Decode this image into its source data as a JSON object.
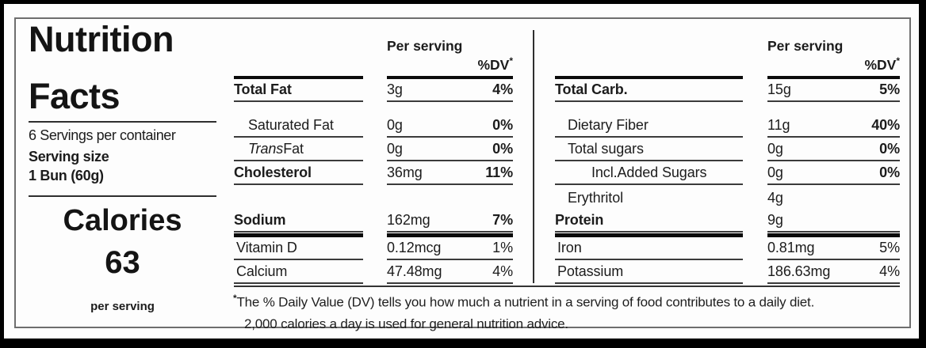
{
  "panel": {
    "title_line1": "Nutrition",
    "title_line2": "Facts",
    "servings_per_container": "6 Servings per container",
    "serving_size_label": "Serving size",
    "serving_size_value": "1 Bun (60g)",
    "calories_label": "Calories",
    "calories_value": "63",
    "calories_suffix": "per serving"
  },
  "columns": {
    "left": {
      "header": {
        "per_serving": "Per serving",
        "dv_label": "%DV",
        "asterisk": "*"
      },
      "rows": [
        {
          "name": "Total Fat",
          "amount": "3g",
          "dv": "4%"
        },
        {
          "name": "Saturated Fat",
          "amount": "0g",
          "dv": "0%"
        },
        {
          "name_italic": "Trans",
          "name_rest": " Fat",
          "amount": "0g",
          "dv": "0%"
        },
        {
          "name": "Cholesterol",
          "amount": "36mg",
          "dv": "11%"
        },
        {
          "name": "Sodium",
          "amount": "162mg",
          "dv": "7%"
        },
        {
          "name": "Vitamin D",
          "amount": "0.12mcg",
          "dv": "1%"
        },
        {
          "name": "Calcium",
          "amount": "47.48mg",
          "dv": "4%"
        }
      ]
    },
    "right": {
      "header": {
        "per_serving": "Per serving",
        "dv_label": "%DV",
        "asterisk": "*"
      },
      "rows": [
        {
          "name": "Total Carb.",
          "amount": "15g",
          "dv": "5%"
        },
        {
          "name": "Dietary Fiber",
          "amount": "11g",
          "dv": "40%"
        },
        {
          "name": "Total sugars",
          "amount": "0g",
          "dv": "0%"
        },
        {
          "name": "Incl.Added Sugars",
          "amount": "0g",
          "dv": "0%"
        },
        {
          "name": "Erythritol",
          "amount": "4g",
          "dv": ""
        },
        {
          "name": "Protein",
          "amount": "9g",
          "dv": ""
        },
        {
          "name": "Iron",
          "amount": "0.81mg",
          "dv": "5%"
        },
        {
          "name": "Potassium",
          "amount": "186.63mg",
          "dv": "4%"
        }
      ]
    }
  },
  "footnote": {
    "asterisk": "*",
    "line1": "The % Daily Value (DV) tells you how much a nutrient in a serving of food contributes to a daily diet.",
    "line2": "2,000 calories a day is used for general nutrition advice."
  },
  "colors": {
    "text": "#1c1c1c",
    "thick_rule": "#0b0b0b",
    "thin_rule": "#3b3b3b",
    "outer_border": "#000000",
    "inner_border": "#6e6e6e"
  }
}
